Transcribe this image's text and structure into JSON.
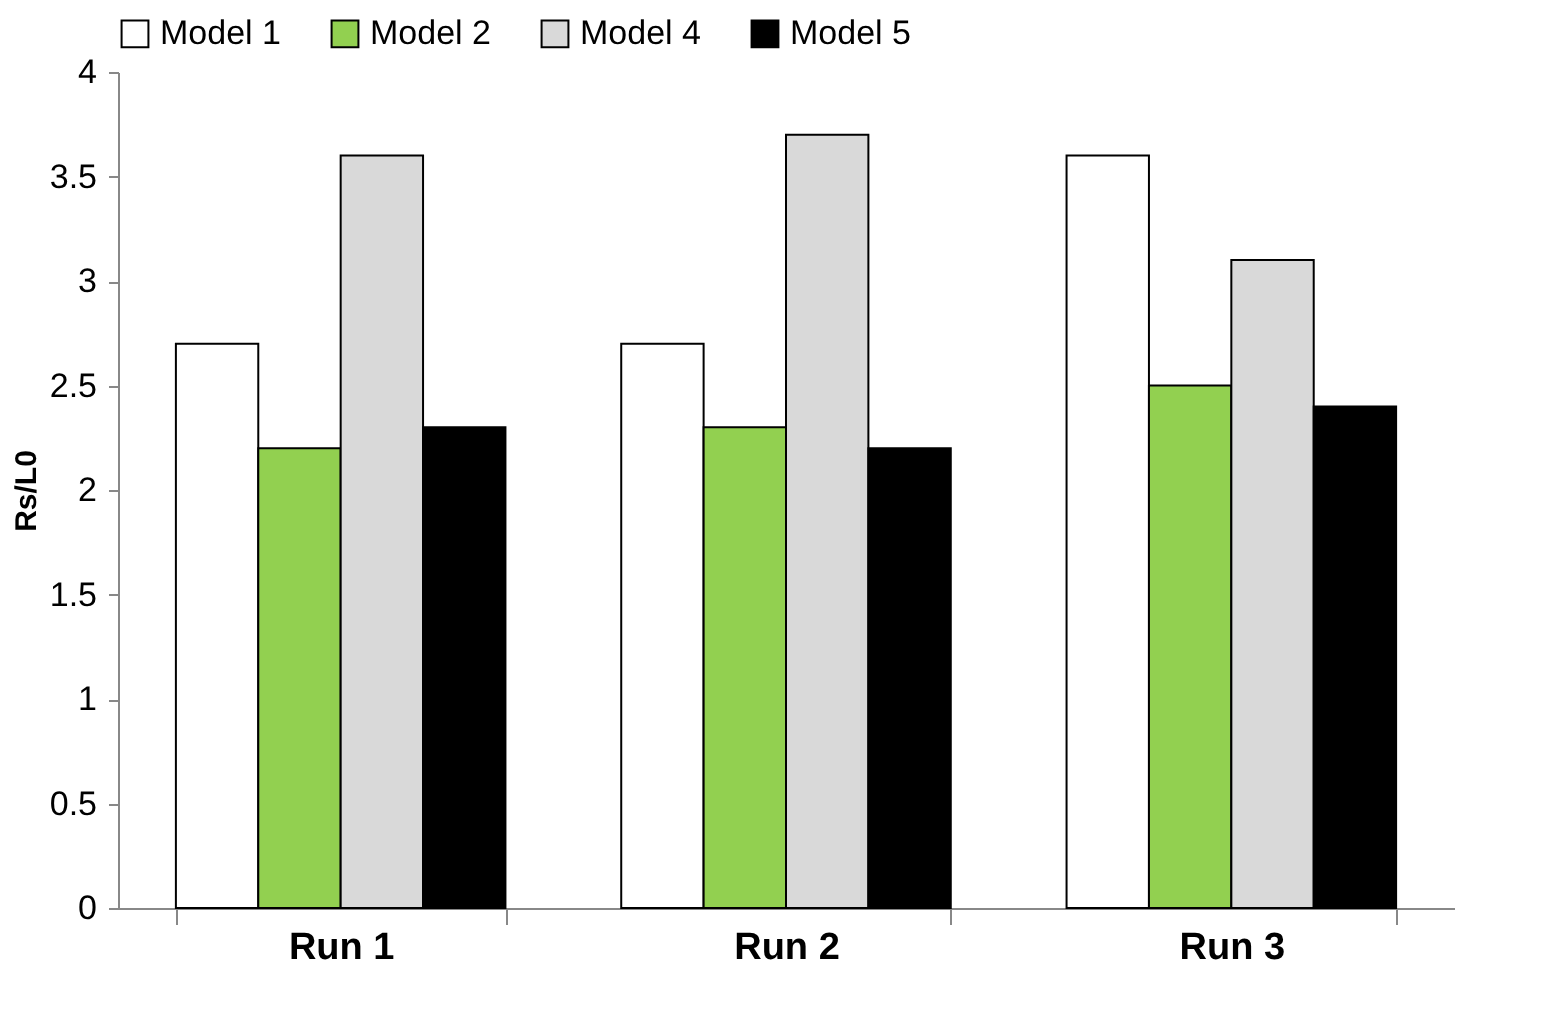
{
  "chart_data": {
    "type": "bar",
    "ylabel": "Rs/L0",
    "categories": [
      "Run 1",
      "Run 2",
      "Run 3"
    ],
    "series": [
      {
        "name": "Model 1",
        "color": "#ffffff",
        "values": [
          2.7,
          2.7,
          3.6
        ]
      },
      {
        "name": "Model 2",
        "color": "#92d050",
        "values": [
          2.2,
          2.3,
          2.5
        ]
      },
      {
        "name": "Model 4",
        "color": "#d9d9d9",
        "values": [
          3.6,
          3.7,
          3.1
        ]
      },
      {
        "name": "Model 5",
        "color": "#000000",
        "values": [
          2.3,
          2.2,
          2.4
        ]
      }
    ],
    "ylim": [
      0,
      4
    ],
    "yticks": [
      0,
      0.5,
      1,
      1.5,
      2,
      2.5,
      3,
      3.5,
      4
    ],
    "grid": false,
    "legend": "top"
  }
}
